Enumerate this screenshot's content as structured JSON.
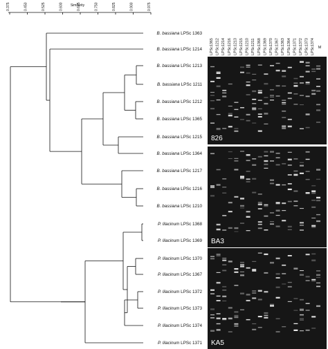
{
  "scale": {
    "label": "Similarity",
    "ticks": [
      "0.375",
      "0.450",
      "0.525",
      "0.600",
      "0.675",
      "0.750",
      "0.825",
      "0.900",
      "0.975"
    ]
  },
  "leaves": [
    {
      "genus": "B. bassiana",
      "code": "LPSc 1363"
    },
    {
      "genus": "B. bassiana",
      "code": "LPSc 1214"
    },
    {
      "genus": "B. bassiana",
      "code": "LPSc 1213"
    },
    {
      "genus": "B. bassiana",
      "code": "LPSc 1211"
    },
    {
      "genus": "B. bassiana",
      "code": "LPSc 1212"
    },
    {
      "genus": "B. bassiana",
      "code": "LPSc 1365"
    },
    {
      "genus": "B. bassiana",
      "code": "LPSc 1215"
    },
    {
      "genus": "B. bassiana",
      "code": "LPSc 1364"
    },
    {
      "genus": "B. bassiana",
      "code": "LPSc 1217"
    },
    {
      "genus": "B. bassiana",
      "code": "LPSc 1216"
    },
    {
      "genus": "B. bassiana",
      "code": "LPSc 1210"
    },
    {
      "genus": "P. lilacinum",
      "code": "LPSc 1368"
    },
    {
      "genus": "P. lilacinum",
      "code": "LPSc 1369"
    },
    {
      "genus": "P. lilacinum",
      "code": "LPSc 1370"
    },
    {
      "genus": "P. lilacinum",
      "code": "LPSc 1367"
    },
    {
      "genus": "P. lilacinum",
      "code": "LPSc 1372"
    },
    {
      "genus": "P. lilacinum",
      "code": "LPSc 1373"
    },
    {
      "genus": "P. lilacinum",
      "code": "LPSc 1374"
    },
    {
      "genus": "P. lilacinum",
      "code": "LPSc 1371"
    }
  ],
  "lanes": [
    "LPSc1365",
    "LPSc1212",
    "LPSc1214",
    "LPSc1216",
    "LPSc1213",
    "LPSc1215",
    "LPSc1210",
    "LPSc1211",
    "LPSc1368",
    "LPSc1369",
    "LPSc1370",
    "LPSc1367",
    "LPSc1363",
    "LPSc1364",
    "LPSc1371",
    "LPSc1372",
    "LPSc1373",
    "LPSc1374"
  ],
  "marker_lane": "M",
  "panels": [
    {
      "label": "826"
    },
    {
      "label": "BA3"
    },
    {
      "label": "KA5"
    }
  ],
  "colors": {
    "gel": "#161616",
    "band": "#ececec",
    "line": "#111111"
  }
}
